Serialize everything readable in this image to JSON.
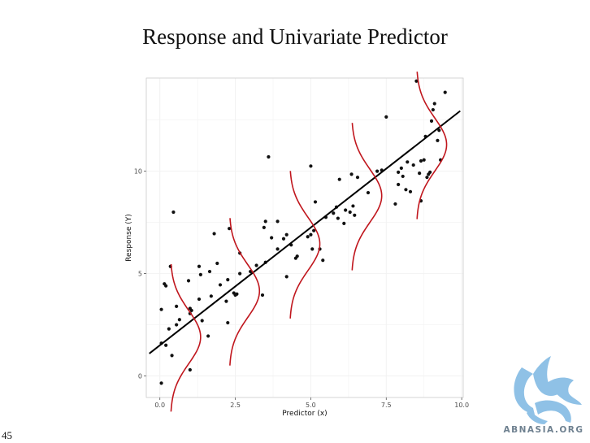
{
  "slide": {
    "title": "Response and Univariate Predictor",
    "page_number": "45"
  },
  "watermark": {
    "text": "ABNASIA.ORG",
    "color": "#6f8190",
    "icon": "winged-lion-logo",
    "icon_color": "#8fc1e6"
  },
  "chart_data": {
    "type": "scatter",
    "title": "",
    "xlabel": "Predictor (x)",
    "ylabel": "Response (Y)",
    "xlim": [
      -0.45,
      10.05
    ],
    "ylim": [
      -1.05,
      14.55
    ],
    "x_ticks": [
      0,
      2.5,
      5,
      7.5,
      10
    ],
    "x_tick_labels": [
      "0.0",
      "2.5",
      "5.0",
      "7.5",
      "10.0"
    ],
    "y_ticks": [
      0,
      5,
      10
    ],
    "y_tick_labels": [
      "0",
      "5",
      "10"
    ],
    "grid": true,
    "legend": "none",
    "colors": {
      "points": "#111111",
      "fit_line": "#000000",
      "density_curves": "#c0161d",
      "grid": "#f2f2f2",
      "frame": "#cccccc"
    },
    "fit_line": {
      "intercept": 1.5,
      "slope": 1.15,
      "x_range": [
        -0.35,
        9.95
      ]
    },
    "density_curves": [
      {
        "center_x": 0.35,
        "mean": 1.9,
        "sd": 1.3,
        "peak_width": 1.0
      },
      {
        "center_x": 2.3,
        "mean": 4.15,
        "sd": 1.3,
        "peak_width": 1.0
      },
      {
        "center_x": 4.3,
        "mean": 6.45,
        "sd": 1.3,
        "peak_width": 1.0
      },
      {
        "center_x": 6.35,
        "mean": 8.8,
        "sd": 1.3,
        "peak_width": 1.0
      },
      {
        "center_x": 8.5,
        "mean": 11.3,
        "sd": 1.3,
        "peak_width": 1.0
      }
    ],
    "points": [
      [
        0.05,
        -0.35
      ],
      [
        0.05,
        3.25
      ],
      [
        0.05,
        1.6
      ],
      [
        0.15,
        4.5
      ],
      [
        0.2,
        4.4
      ],
      [
        0.2,
        1.5
      ],
      [
        0.3,
        2.3
      ],
      [
        0.35,
        5.35
      ],
      [
        0.4,
        1.0
      ],
      [
        0.45,
        8.0
      ],
      [
        0.55,
        3.4
      ],
      [
        0.55,
        2.5
      ],
      [
        0.65,
        2.75
      ],
      [
        0.95,
        4.65
      ],
      [
        1.0,
        3.05
      ],
      [
        1.0,
        3.3
      ],
      [
        1.0,
        0.3
      ],
      [
        1.05,
        3.2
      ],
      [
        1.3,
        3.75
      ],
      [
        1.3,
        5.35
      ],
      [
        1.35,
        4.95
      ],
      [
        1.4,
        2.7
      ],
      [
        1.6,
        1.95
      ],
      [
        1.65,
        5.1
      ],
      [
        1.7,
        3.9
      ],
      [
        1.8,
        6.95
      ],
      [
        1.9,
        5.5
      ],
      [
        2.0,
        4.45
      ],
      [
        2.2,
        3.65
      ],
      [
        2.25,
        2.6
      ],
      [
        2.25,
        4.7
      ],
      [
        2.3,
        7.2
      ],
      [
        2.45,
        4.05
      ],
      [
        2.5,
        3.95
      ],
      [
        2.55,
        4.0
      ],
      [
        2.65,
        6.0
      ],
      [
        2.65,
        5.0
      ],
      [
        3.0,
        5.1
      ],
      [
        3.2,
        5.4
      ],
      [
        3.4,
        3.95
      ],
      [
        3.45,
        7.25
      ],
      [
        3.5,
        7.55
      ],
      [
        3.5,
        5.55
      ],
      [
        3.6,
        10.7
      ],
      [
        3.7,
        6.75
      ],
      [
        3.9,
        7.55
      ],
      [
        3.9,
        6.2
      ],
      [
        4.1,
        6.7
      ],
      [
        4.2,
        4.85
      ],
      [
        4.2,
        6.9
      ],
      [
        4.35,
        6.4
      ],
      [
        4.5,
        5.75
      ],
      [
        4.55,
        5.85
      ],
      [
        4.9,
        6.8
      ],
      [
        5.0,
        10.25
      ],
      [
        5.0,
        6.9
      ],
      [
        5.05,
        6.2
      ],
      [
        5.1,
        7.1
      ],
      [
        5.15,
        8.5
      ],
      [
        5.3,
        6.2
      ],
      [
        5.4,
        5.65
      ],
      [
        5.5,
        7.75
      ],
      [
        5.75,
        7.95
      ],
      [
        5.85,
        8.25
      ],
      [
        5.9,
        7.7
      ],
      [
        5.95,
        9.6
      ],
      [
        6.1,
        7.45
      ],
      [
        6.15,
        8.1
      ],
      [
        6.3,
        8.0
      ],
      [
        6.35,
        9.85
      ],
      [
        6.4,
        8.3
      ],
      [
        6.45,
        7.85
      ],
      [
        6.55,
        9.7
      ],
      [
        6.9,
        8.95
      ],
      [
        7.2,
        10.0
      ],
      [
        7.35,
        10.05
      ],
      [
        7.5,
        12.65
      ],
      [
        7.8,
        8.4
      ],
      [
        7.9,
        9.35
      ],
      [
        7.9,
        9.95
      ],
      [
        8.0,
        10.15
      ],
      [
        8.05,
        9.75
      ],
      [
        8.15,
        9.1
      ],
      [
        8.2,
        10.45
      ],
      [
        8.3,
        9.0
      ],
      [
        8.4,
        10.3
      ],
      [
        8.5,
        14.4
      ],
      [
        8.6,
        9.9
      ],
      [
        8.65,
        8.55
      ],
      [
        8.65,
        10.5
      ],
      [
        8.75,
        10.55
      ],
      [
        8.8,
        11.7
      ],
      [
        8.85,
        9.7
      ],
      [
        8.9,
        9.85
      ],
      [
        8.95,
        9.95
      ],
      [
        9.0,
        12.45
      ],
      [
        9.05,
        13.0
      ],
      [
        9.1,
        13.3
      ],
      [
        9.2,
        11.5
      ],
      [
        9.25,
        12.0
      ],
      [
        9.3,
        10.55
      ],
      [
        9.45,
        13.85
      ]
    ]
  }
}
